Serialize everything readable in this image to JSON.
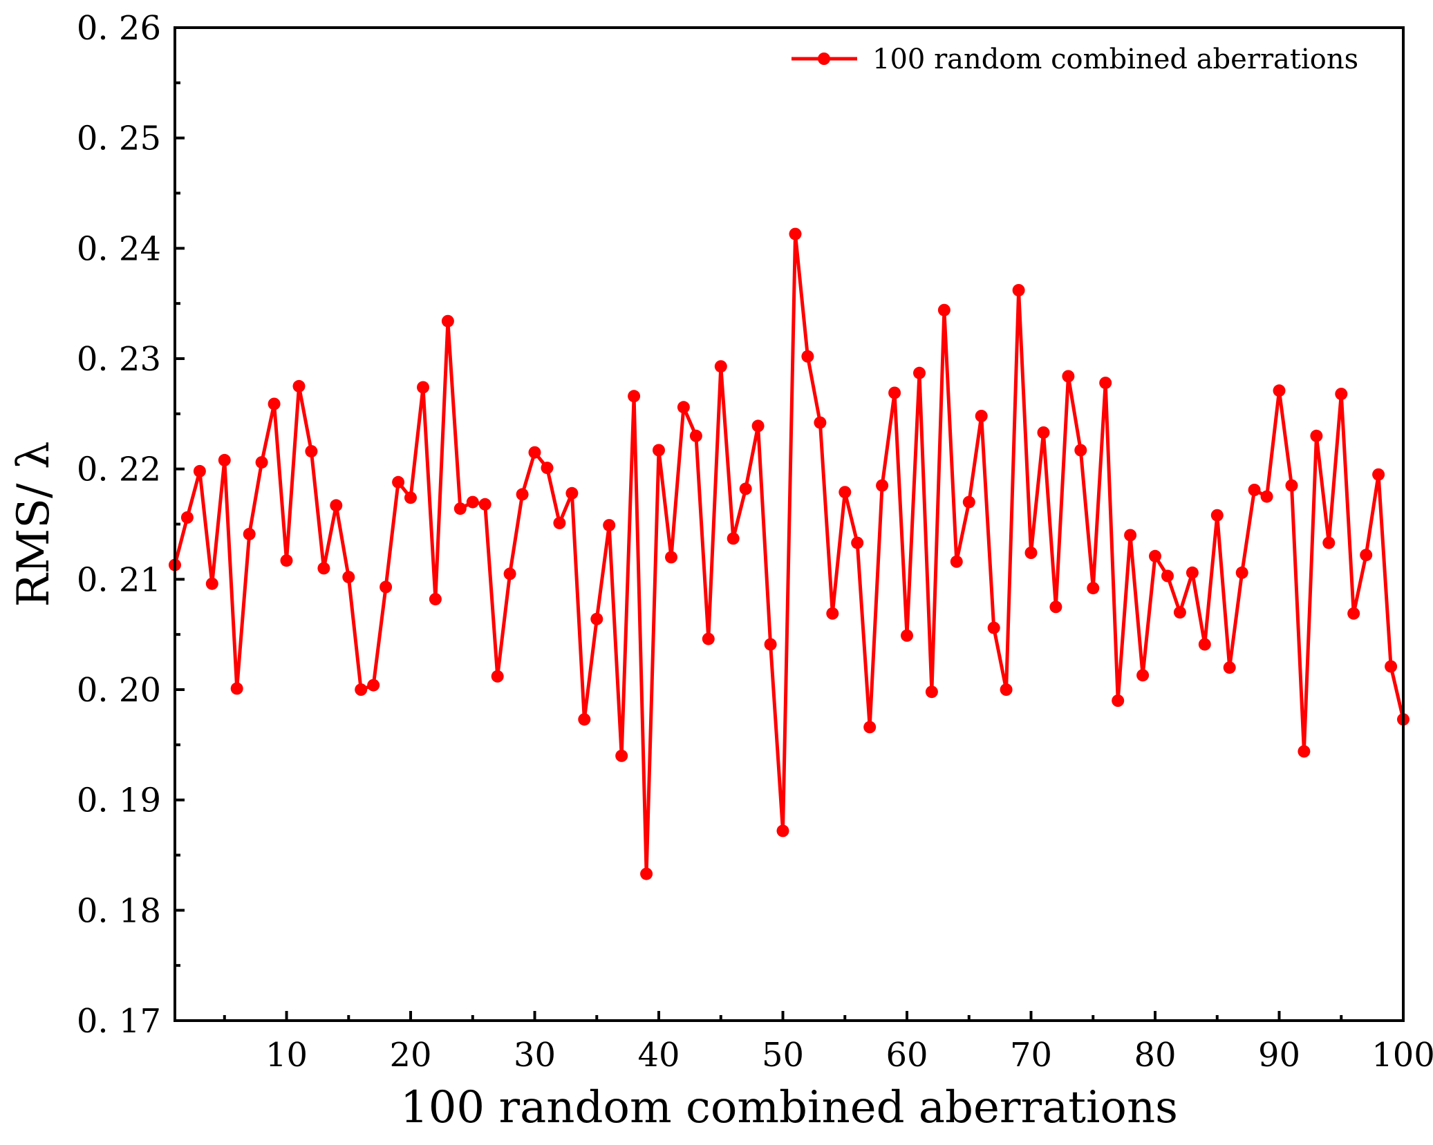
{
  "chart_data": {
    "type": "line",
    "title": "",
    "xlabel": "100 random combined aberrations",
    "ylabel": "RMS/ λ",
    "xlim": [
      1,
      100
    ],
    "ylim": [
      0.17,
      0.26
    ],
    "x_ticks": [
      10,
      20,
      30,
      40,
      50,
      60,
      70,
      80,
      90,
      100
    ],
    "y_ticks": [
      0.17,
      0.18,
      0.19,
      0.2,
      0.21,
      0.22,
      0.23,
      0.24,
      0.25,
      0.26
    ],
    "x_tick_labels": [
      "10",
      "20",
      "30",
      "40",
      "50",
      "60",
      "70",
      "80",
      "90",
      "100"
    ],
    "y_tick_labels": [
      "0. 17",
      "0. 18",
      "0. 19",
      "0. 20",
      "0. 21",
      "0. 22",
      "0. 23",
      "0. 24",
      "0. 25",
      "0. 26"
    ],
    "grid": false,
    "legend_position": "top-right",
    "series": [
      {
        "name": "100 random combined aberrations",
        "color": "#ff0000",
        "marker": "circle",
        "x": [
          1,
          2,
          3,
          4,
          5,
          6,
          7,
          8,
          9,
          10,
          11,
          12,
          13,
          14,
          15,
          16,
          17,
          18,
          19,
          20,
          21,
          22,
          23,
          24,
          25,
          26,
          27,
          28,
          29,
          30,
          31,
          32,
          33,
          34,
          35,
          36,
          37,
          38,
          39,
          40,
          41,
          42,
          43,
          44,
          45,
          46,
          47,
          48,
          49,
          50,
          51,
          52,
          53,
          54,
          55,
          56,
          57,
          58,
          59,
          60,
          61,
          62,
          63,
          64,
          65,
          66,
          67,
          68,
          69,
          70,
          71,
          72,
          73,
          74,
          75,
          76,
          77,
          78,
          79,
          80,
          81,
          82,
          83,
          84,
          85,
          86,
          87,
          88,
          89,
          90,
          91,
          92,
          93,
          94,
          95,
          96,
          97,
          98,
          99,
          100
        ],
        "values": [
          0.2113,
          0.2156,
          0.2198,
          0.2096,
          0.2208,
          0.2001,
          0.2141,
          0.2206,
          0.2259,
          0.2117,
          0.2275,
          0.2216,
          0.211,
          0.2167,
          0.2102,
          0.2,
          0.2004,
          0.2093,
          0.2188,
          0.2174,
          0.2274,
          0.2082,
          0.2334,
          0.2164,
          0.217,
          0.2168,
          0.2012,
          0.2105,
          0.2177,
          0.2215,
          0.2201,
          0.2151,
          0.2178,
          0.1973,
          0.2064,
          0.2149,
          0.194,
          0.2266,
          0.1833,
          0.2217,
          0.212,
          0.2256,
          0.223,
          0.2046,
          0.2293,
          0.2137,
          0.2182,
          0.2239,
          0.2041,
          0.1872,
          0.2413,
          0.2302,
          0.2242,
          0.2069,
          0.2179,
          0.2133,
          0.1966,
          0.2185,
          0.2269,
          0.2049,
          0.2287,
          0.1998,
          0.2344,
          0.2116,
          0.217,
          0.2248,
          0.2056,
          0.2,
          0.2362,
          0.2124,
          0.2233,
          0.2075,
          0.2284,
          0.2217,
          0.2092,
          0.2278,
          0.199,
          0.214,
          0.2013,
          0.2121,
          0.2103,
          0.207,
          0.2106,
          0.2041,
          0.2158,
          0.202,
          0.2106,
          0.2181,
          0.2175,
          0.2271,
          0.2185,
          0.1944,
          0.223,
          0.2133,
          0.2268,
          0.2069,
          0.2122,
          0.2195,
          0.2021,
          0.1973
        ]
      }
    ]
  }
}
